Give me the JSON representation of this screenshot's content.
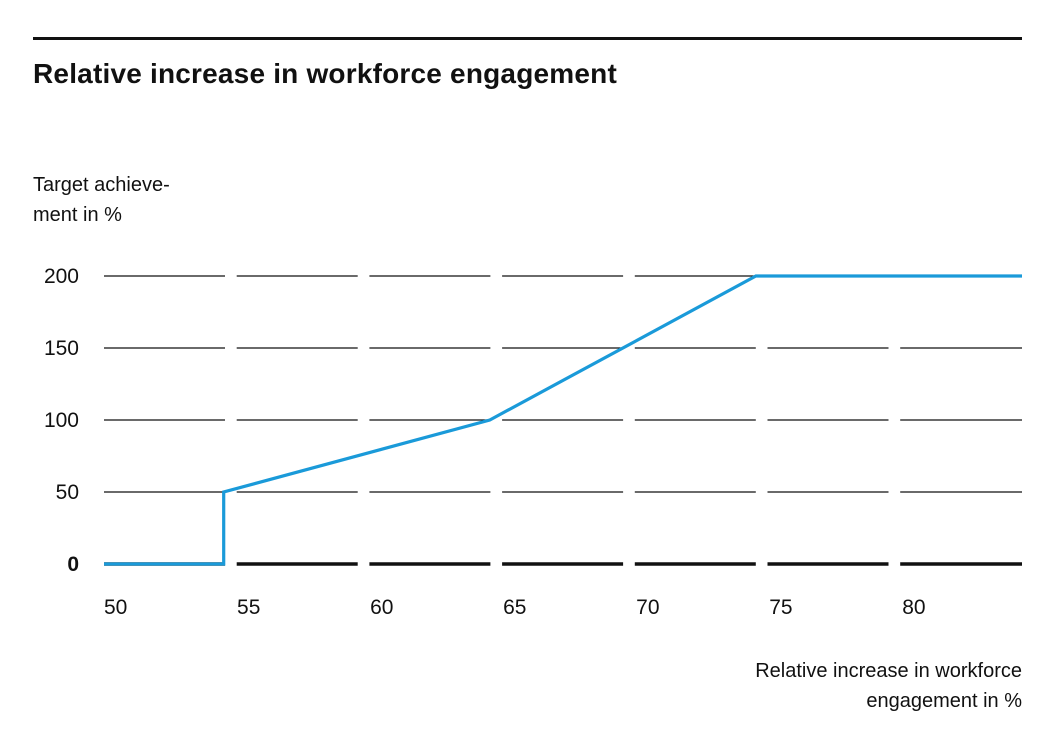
{
  "chart_data": {
    "type": "line",
    "title": "Relative increase in workforce engagement",
    "ylabel": "Target achievement in %",
    "ylabel_lines": [
      "Target achieve-",
      "ment in %"
    ],
    "xlabel": "Relative increase in workforce engagement in %",
    "xlabel_lines": [
      "Relative increase in workforce",
      "engagement in %"
    ],
    "xlim": [
      50,
      84.5
    ],
    "ylim": [
      0,
      200
    ],
    "x_ticks": [
      50,
      55,
      60,
      65,
      70,
      75,
      80
    ],
    "y_ticks": [
      0,
      50,
      100,
      150,
      200
    ],
    "grid": true,
    "series": [
      {
        "name": "Target achievement",
        "color": "#1a9ad9",
        "x": [
          50,
          54.5,
          54.5,
          64.5,
          74.5,
          84.5
        ],
        "y": [
          0,
          0,
          50,
          100,
          200,
          200
        ]
      }
    ]
  },
  "colors": {
    "line": "#1a9ad9",
    "axis": "#111111",
    "grid": "#111111"
  }
}
